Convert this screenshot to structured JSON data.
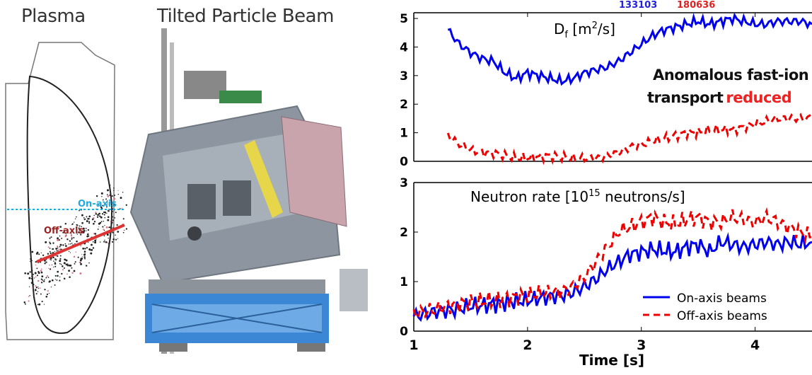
{
  "left_panel": {
    "plasma_title": "Plasma",
    "beam_title": "Tilted Particle Beam",
    "on_axis_label": "On-axis",
    "off_axis_label": "Off-axis"
  },
  "chart_data": [
    {
      "type": "line",
      "panel": "top",
      "title": "",
      "annotation_quantity": "D",
      "annotation_subscript": "f",
      "annotation_unit_open": "[m",
      "annotation_unit_power": "2",
      "annotation_unit_close": "/s]",
      "text_annotation_line1": "Anomalous fast-ion",
      "text_annotation_line2_a": "transport",
      "text_annotation_line2_b": "reduced",
      "shot_numbers": [
        "133103",
        "180636"
      ],
      "xlim": [
        1,
        4.5
      ],
      "ylim": [
        0,
        5.2
      ],
      "yticks": [
        0,
        1,
        2,
        3,
        4,
        5
      ],
      "series": [
        {
          "name": "On-axis beams",
          "color": "#0000ee",
          "style": "solid",
          "x": [
            1.3,
            1.4,
            1.5,
            1.6,
            1.7,
            1.8,
            1.9,
            2.0,
            2.1,
            2.2,
            2.3,
            2.4,
            2.5,
            2.6,
            2.7,
            2.8,
            2.9,
            3.0,
            3.1,
            3.2,
            3.3,
            3.4,
            3.5,
            3.6,
            3.7,
            3.8,
            3.9,
            4.0,
            4.1,
            4.2,
            4.3,
            4.4,
            4.5
          ],
          "y": [
            4.6,
            4.1,
            3.8,
            3.6,
            3.5,
            3.1,
            2.9,
            3.1,
            3.0,
            2.9,
            2.8,
            2.9,
            3.1,
            3.2,
            3.3,
            3.5,
            3.8,
            4.1,
            4.4,
            4.6,
            4.7,
            4.8,
            4.9,
            4.8,
            4.9,
            5.0,
            4.9,
            4.8,
            4.8,
            4.9,
            4.9,
            4.9,
            4.8
          ]
        },
        {
          "name": "Off-axis beams",
          "color": "#ee0000",
          "style": "dashed",
          "x": [
            1.3,
            1.4,
            1.5,
            1.6,
            1.7,
            1.8,
            1.9,
            2.0,
            2.1,
            2.2,
            2.3,
            2.4,
            2.5,
            2.6,
            2.7,
            2.8,
            2.9,
            3.0,
            3.1,
            3.2,
            3.3,
            3.4,
            3.5,
            3.6,
            3.7,
            3.8,
            3.9,
            4.0,
            4.1,
            4.2,
            4.3,
            4.4,
            4.5
          ],
          "y": [
            0.9,
            0.6,
            0.4,
            0.3,
            0.3,
            0.2,
            0.1,
            0.1,
            0.15,
            0.2,
            0.15,
            0.1,
            0.1,
            0.1,
            0.2,
            0.3,
            0.5,
            0.6,
            0.7,
            0.8,
            0.9,
            1.0,
            1.0,
            1.1,
            1.1,
            1.1,
            1.2,
            1.3,
            1.4,
            1.5,
            1.5,
            1.5,
            1.5
          ]
        }
      ]
    },
    {
      "type": "line",
      "panel": "bottom",
      "title": "",
      "annotation_prefix": "Neutron rate [10",
      "annotation_power": "15",
      "annotation_suffix": " neutrons/s]",
      "xlabel": "Time [s]",
      "xlim": [
        1,
        4.5
      ],
      "ylim": [
        0,
        3
      ],
      "xticks": [
        1,
        2,
        3,
        4
      ],
      "yticks": [
        0,
        1,
        2,
        3
      ],
      "legend_placement": "lower-right",
      "series": [
        {
          "name": "On-axis beams",
          "color": "#0000ee",
          "style": "solid",
          "x": [
            1.0,
            1.1,
            1.2,
            1.3,
            1.4,
            1.5,
            1.6,
            1.7,
            1.8,
            1.9,
            2.0,
            2.1,
            2.2,
            2.3,
            2.4,
            2.5,
            2.6,
            2.7,
            2.8,
            2.9,
            3.0,
            3.1,
            3.2,
            3.3,
            3.4,
            3.5,
            3.6,
            3.7,
            3.8,
            3.9,
            4.0,
            4.1,
            4.2,
            4.3,
            4.4,
            4.5
          ],
          "y": [
            0.3,
            0.35,
            0.4,
            0.42,
            0.45,
            0.5,
            0.52,
            0.55,
            0.58,
            0.6,
            0.62,
            0.66,
            0.7,
            0.72,
            0.78,
            0.9,
            1.05,
            1.25,
            1.4,
            1.55,
            1.6,
            1.65,
            1.62,
            1.6,
            1.7,
            1.75,
            1.6,
            1.8,
            1.75,
            1.7,
            1.75,
            1.8,
            1.75,
            1.8,
            1.75,
            1.8
          ]
        },
        {
          "name": "Off-axis beams",
          "color": "#ee0000",
          "style": "dashed",
          "x": [
            1.0,
            1.1,
            1.2,
            1.3,
            1.4,
            1.5,
            1.6,
            1.7,
            1.8,
            1.9,
            2.0,
            2.1,
            2.2,
            2.3,
            2.4,
            2.5,
            2.6,
            2.7,
            2.8,
            2.9,
            3.0,
            3.1,
            3.2,
            3.3,
            3.4,
            3.5,
            3.6,
            3.7,
            3.8,
            3.9,
            4.0,
            4.1,
            4.2,
            4.3,
            4.4,
            4.5
          ],
          "y": [
            0.35,
            0.4,
            0.45,
            0.5,
            0.55,
            0.58,
            0.6,
            0.62,
            0.66,
            0.7,
            0.72,
            0.75,
            0.78,
            0.8,
            0.9,
            1.1,
            1.4,
            1.7,
            2.0,
            2.1,
            2.2,
            2.3,
            2.2,
            2.15,
            2.25,
            2.3,
            2.2,
            2.2,
            2.3,
            2.25,
            2.2,
            2.3,
            2.2,
            2.1,
            2.0,
            1.9
          ]
        }
      ]
    }
  ]
}
